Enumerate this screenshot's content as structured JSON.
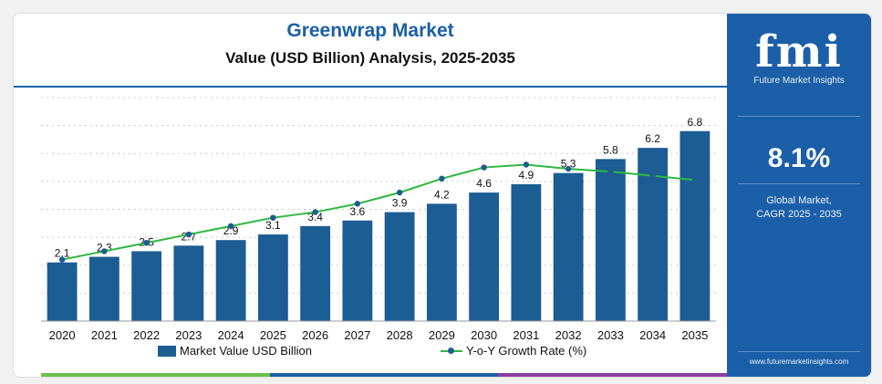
{
  "header": {
    "title": "Greenwrap Market",
    "subtitle": "Value (USD Billion) Analysis, 2025-2035"
  },
  "sidebar": {
    "logo_text": "fmi",
    "logo_subtitle": "Future Market Insights",
    "cagr_value": "8.1%",
    "cagr_label_line1": "Global Market,",
    "cagr_label_line2": "CAGR 2025 - 2035",
    "website": "www.futuremarketinsights.com"
  },
  "colors": {
    "bar": "#1c5d94",
    "line": "#2eb840",
    "marker": "#1c5d94",
    "brand": "#1b5fa8"
  },
  "chart_data": {
    "type": "bar",
    "title": "Greenwrap Market",
    "subtitle": "Value (USD Billion) Analysis, 2025-2035",
    "categories": [
      "2020",
      "2021",
      "2022",
      "2023",
      "2024",
      "2025",
      "2026",
      "2027",
      "2028",
      "2029",
      "2030",
      "2031",
      "2032",
      "2033",
      "2034",
      "2035"
    ],
    "ylim": [
      0,
      8
    ],
    "grid": true,
    "legend_placement": "bottom",
    "series": [
      {
        "name": "Market Value USD Billion",
        "type": "bar",
        "values": [
          2.1,
          2.3,
          2.5,
          2.7,
          2.9,
          3.1,
          3.4,
          3.6,
          3.9,
          4.2,
          4.6,
          4.9,
          5.3,
          5.8,
          6.2,
          6.8
        ],
        "labels": [
          "2.1",
          "2.3",
          "2.5",
          "2.7",
          "2.9",
          "3.1",
          "3.4",
          "3.6",
          "3.9",
          "4.2",
          "4.6",
          "4.9",
          "5.3",
          "5.8",
          "6.2",
          "6.8"
        ]
      },
      {
        "name": "Y-o-Y Growth Rate (%)",
        "type": "line",
        "values": [
          2.2,
          2.5,
          2.8,
          3.1,
          3.4,
          3.7,
          3.9,
          4.2,
          4.6,
          5.1,
          5.5,
          5.6,
          5.45,
          5.35,
          5.2,
          5.05
        ]
      }
    ]
  }
}
